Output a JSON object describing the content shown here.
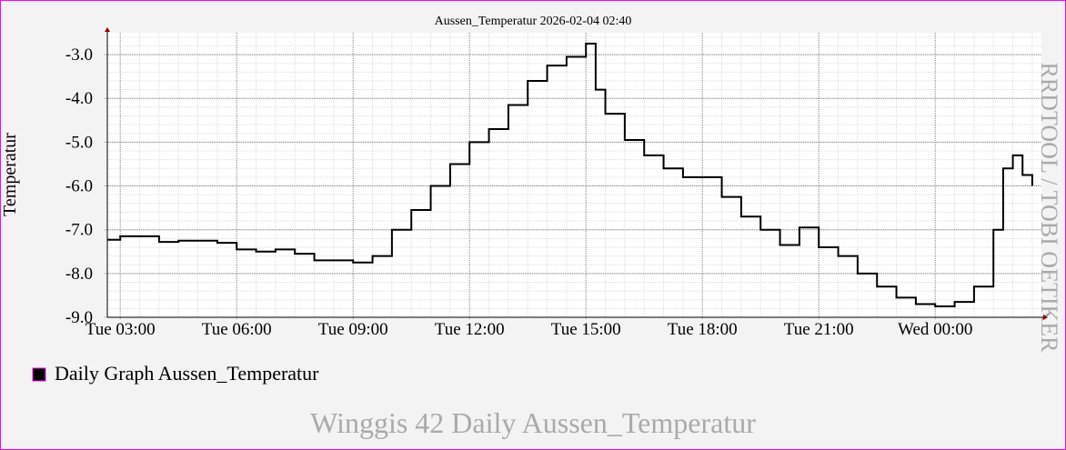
{
  "chart_data": {
    "type": "line",
    "title": "Aussen_Temperatur 2026-02-04 02:40",
    "y_label": "Temperatur",
    "watermark": "RRDTOOL / TOBI OETIKER",
    "footer": "Winggis 42 Daily Aussen_Temperatur",
    "step": true,
    "grid": true,
    "xlim": [
      2.6667,
      26.6667
    ],
    "xticks": [
      {
        "value": 3,
        "label": "Tue 03:00"
      },
      {
        "value": 6,
        "label": "Tue 06:00"
      },
      {
        "value": 9,
        "label": "Tue 09:00"
      },
      {
        "value": 12,
        "label": "Tue 12:00"
      },
      {
        "value": 15,
        "label": "Tue 15:00"
      },
      {
        "value": 18,
        "label": "Tue 18:00"
      },
      {
        "value": 21,
        "label": "Tue 21:00"
      },
      {
        "value": 24,
        "label": "Wed 00:00"
      }
    ],
    "ylim": [
      -9.0,
      -2.5
    ],
    "yticks": [
      {
        "value": -3,
        "label": "-3.0"
      },
      {
        "value": -4,
        "label": "-4.0"
      },
      {
        "value": -5,
        "label": "-5.0"
      },
      {
        "value": -6,
        "label": "-6.0"
      },
      {
        "value": -7,
        "label": "-7.0"
      },
      {
        "value": -8,
        "label": "-8.0"
      },
      {
        "value": -9,
        "label": "-9.0"
      }
    ],
    "x": [
      2.6667,
      3.0,
      3.5,
      4.0,
      4.5,
      5.0,
      5.5,
      6.0,
      6.5,
      7.0,
      7.5,
      8.0,
      8.5,
      9.0,
      9.5,
      10.0,
      10.5,
      11.0,
      11.5,
      12.0,
      12.5,
      13.0,
      13.5,
      14.0,
      14.5,
      15.0,
      15.25,
      15.5,
      16.0,
      16.5,
      17.0,
      17.5,
      18.0,
      18.5,
      19.0,
      19.5,
      20.0,
      20.5,
      21.0,
      21.5,
      22.0,
      22.5,
      23.0,
      23.5,
      24.0,
      24.5,
      25.0,
      25.5,
      25.75,
      26.0,
      26.25,
      26.5
    ],
    "series": [
      {
        "name": "Daily Graph Aussen_Temperatur",
        "color": "#000000",
        "values": [
          -7.23,
          -7.15,
          -7.15,
          -7.28,
          -7.25,
          -7.25,
          -7.3,
          -7.45,
          -7.5,
          -7.45,
          -7.55,
          -7.7,
          -7.7,
          -7.75,
          -7.6,
          -7.0,
          -6.55,
          -6.0,
          -5.5,
          -5.0,
          -4.7,
          -4.15,
          -3.6,
          -3.25,
          -3.05,
          -2.75,
          -3.8,
          -4.35,
          -4.95,
          -5.3,
          -5.6,
          -5.8,
          -5.8,
          -6.25,
          -6.7,
          -7.0,
          -7.35,
          -6.95,
          -7.4,
          -7.6,
          -8.0,
          -8.3,
          -8.55,
          -8.7,
          -8.75,
          -8.65,
          -8.3,
          -7.0,
          -5.6,
          -5.3,
          -5.75,
          -6.0
        ]
      }
    ]
  }
}
